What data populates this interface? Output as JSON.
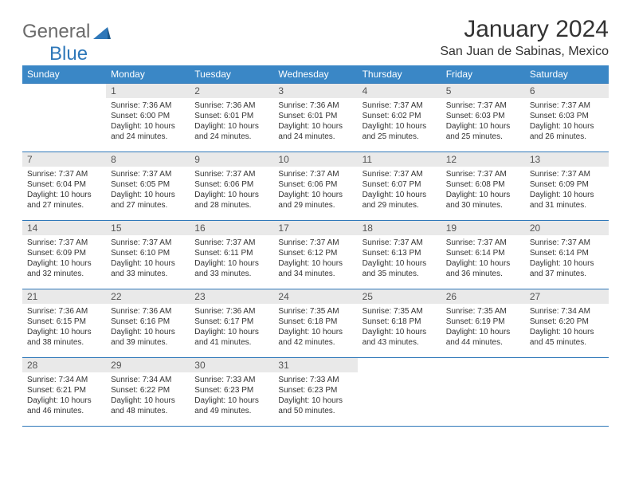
{
  "logo": {
    "general": "General",
    "blue": "Blue"
  },
  "title": "January 2024",
  "location": "San Juan de Sabinas, Mexico",
  "colors": {
    "header_bg": "#3a87c6",
    "header_text": "#ffffff",
    "border": "#2f78b9",
    "daynum_bg": "#e9e9e9",
    "text": "#333333",
    "logo_gray": "#6b6b6b",
    "logo_blue": "#2f78b9",
    "page_bg": "#ffffff"
  },
  "day_headers": [
    "Sunday",
    "Monday",
    "Tuesday",
    "Wednesday",
    "Thursday",
    "Friday",
    "Saturday"
  ],
  "weeks": [
    [
      {
        "n": "",
        "sr": "",
        "ss": "",
        "dl": ""
      },
      {
        "n": "1",
        "sr": "7:36 AM",
        "ss": "6:00 PM",
        "dl": "10 hours and 24 minutes."
      },
      {
        "n": "2",
        "sr": "7:36 AM",
        "ss": "6:01 PM",
        "dl": "10 hours and 24 minutes."
      },
      {
        "n": "3",
        "sr": "7:36 AM",
        "ss": "6:01 PM",
        "dl": "10 hours and 24 minutes."
      },
      {
        "n": "4",
        "sr": "7:37 AM",
        "ss": "6:02 PM",
        "dl": "10 hours and 25 minutes."
      },
      {
        "n": "5",
        "sr": "7:37 AM",
        "ss": "6:03 PM",
        "dl": "10 hours and 25 minutes."
      },
      {
        "n": "6",
        "sr": "7:37 AM",
        "ss": "6:03 PM",
        "dl": "10 hours and 26 minutes."
      }
    ],
    [
      {
        "n": "7",
        "sr": "7:37 AM",
        "ss": "6:04 PM",
        "dl": "10 hours and 27 minutes."
      },
      {
        "n": "8",
        "sr": "7:37 AM",
        "ss": "6:05 PM",
        "dl": "10 hours and 27 minutes."
      },
      {
        "n": "9",
        "sr": "7:37 AM",
        "ss": "6:06 PM",
        "dl": "10 hours and 28 minutes."
      },
      {
        "n": "10",
        "sr": "7:37 AM",
        "ss": "6:06 PM",
        "dl": "10 hours and 29 minutes."
      },
      {
        "n": "11",
        "sr": "7:37 AM",
        "ss": "6:07 PM",
        "dl": "10 hours and 29 minutes."
      },
      {
        "n": "12",
        "sr": "7:37 AM",
        "ss": "6:08 PM",
        "dl": "10 hours and 30 minutes."
      },
      {
        "n": "13",
        "sr": "7:37 AM",
        "ss": "6:09 PM",
        "dl": "10 hours and 31 minutes."
      }
    ],
    [
      {
        "n": "14",
        "sr": "7:37 AM",
        "ss": "6:09 PM",
        "dl": "10 hours and 32 minutes."
      },
      {
        "n": "15",
        "sr": "7:37 AM",
        "ss": "6:10 PM",
        "dl": "10 hours and 33 minutes."
      },
      {
        "n": "16",
        "sr": "7:37 AM",
        "ss": "6:11 PM",
        "dl": "10 hours and 33 minutes."
      },
      {
        "n": "17",
        "sr": "7:37 AM",
        "ss": "6:12 PM",
        "dl": "10 hours and 34 minutes."
      },
      {
        "n": "18",
        "sr": "7:37 AM",
        "ss": "6:13 PM",
        "dl": "10 hours and 35 minutes."
      },
      {
        "n": "19",
        "sr": "7:37 AM",
        "ss": "6:14 PM",
        "dl": "10 hours and 36 minutes."
      },
      {
        "n": "20",
        "sr": "7:37 AM",
        "ss": "6:14 PM",
        "dl": "10 hours and 37 minutes."
      }
    ],
    [
      {
        "n": "21",
        "sr": "7:36 AM",
        "ss": "6:15 PM",
        "dl": "10 hours and 38 minutes."
      },
      {
        "n": "22",
        "sr": "7:36 AM",
        "ss": "6:16 PM",
        "dl": "10 hours and 39 minutes."
      },
      {
        "n": "23",
        "sr": "7:36 AM",
        "ss": "6:17 PM",
        "dl": "10 hours and 41 minutes."
      },
      {
        "n": "24",
        "sr": "7:35 AM",
        "ss": "6:18 PM",
        "dl": "10 hours and 42 minutes."
      },
      {
        "n": "25",
        "sr": "7:35 AM",
        "ss": "6:18 PM",
        "dl": "10 hours and 43 minutes."
      },
      {
        "n": "26",
        "sr": "7:35 AM",
        "ss": "6:19 PM",
        "dl": "10 hours and 44 minutes."
      },
      {
        "n": "27",
        "sr": "7:34 AM",
        "ss": "6:20 PM",
        "dl": "10 hours and 45 minutes."
      }
    ],
    [
      {
        "n": "28",
        "sr": "7:34 AM",
        "ss": "6:21 PM",
        "dl": "10 hours and 46 minutes."
      },
      {
        "n": "29",
        "sr": "7:34 AM",
        "ss": "6:22 PM",
        "dl": "10 hours and 48 minutes."
      },
      {
        "n": "30",
        "sr": "7:33 AM",
        "ss": "6:23 PM",
        "dl": "10 hours and 49 minutes."
      },
      {
        "n": "31",
        "sr": "7:33 AM",
        "ss": "6:23 PM",
        "dl": "10 hours and 50 minutes."
      },
      {
        "n": "",
        "sr": "",
        "ss": "",
        "dl": ""
      },
      {
        "n": "",
        "sr": "",
        "ss": "",
        "dl": ""
      },
      {
        "n": "",
        "sr": "",
        "ss": "",
        "dl": ""
      }
    ]
  ],
  "labels": {
    "sunrise": "Sunrise:",
    "sunset": "Sunset:",
    "daylight": "Daylight:"
  }
}
